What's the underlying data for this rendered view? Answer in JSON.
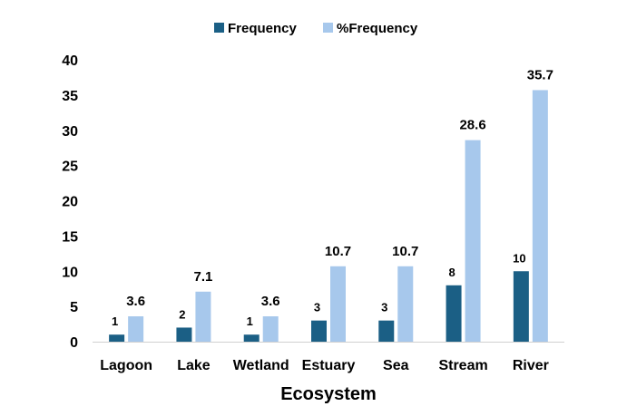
{
  "chart_data": {
    "type": "bar",
    "title": "",
    "xlabel": "Ecosystem",
    "ylabel": "",
    "ylim": [
      0,
      40
    ],
    "yticks": [
      0,
      5,
      10,
      15,
      20,
      25,
      30,
      35,
      40
    ],
    "grid": false,
    "legend_position": "top",
    "categories": [
      "Lagoon",
      "Lake",
      "Wetland",
      "Estuary",
      "Sea",
      "Stream",
      "River"
    ],
    "series": [
      {
        "name": "Frequency",
        "color": "#1b5f85",
        "values": [
          1,
          2,
          1,
          3,
          3,
          8,
          10
        ]
      },
      {
        "name": "%Frequency",
        "color": "#a7c8ec",
        "values": [
          3.6,
          7.1,
          3.6,
          10.7,
          10.7,
          28.6,
          35.7
        ]
      }
    ]
  }
}
